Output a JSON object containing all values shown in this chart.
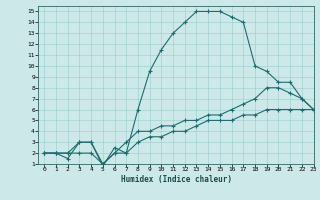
{
  "xlabel": "Humidex (Indice chaleur)",
  "ylabel": "",
  "background_color": "#cce8e8",
  "line_color": "#1a6e6e",
  "xlim": [
    -0.5,
    23
  ],
  "ylim": [
    1,
    15.5
  ],
  "xticks": [
    0,
    1,
    2,
    3,
    4,
    5,
    6,
    7,
    8,
    9,
    10,
    11,
    12,
    13,
    14,
    15,
    16,
    17,
    18,
    19,
    20,
    21,
    22,
    23
  ],
  "yticks": [
    1,
    2,
    3,
    4,
    5,
    6,
    7,
    8,
    9,
    10,
    11,
    12,
    13,
    14,
    15
  ],
  "line1_x": [
    0,
    1,
    2,
    3,
    4,
    5,
    6,
    7,
    8,
    9,
    10,
    11,
    12,
    13,
    14,
    15,
    16,
    17,
    18,
    19,
    20,
    21,
    22,
    23
  ],
  "line1_y": [
    2,
    2,
    1.5,
    3,
    3,
    0.8,
    2.5,
    2,
    6,
    9.5,
    11.5,
    13,
    14,
    15,
    15,
    15,
    14.5,
    14,
    10,
    9.5,
    8.5,
    8.5,
    7,
    6
  ],
  "line2_x": [
    0,
    1,
    2,
    3,
    4,
    5,
    6,
    7,
    8,
    9,
    10,
    11,
    12,
    13,
    14,
    15,
    16,
    17,
    18,
    19,
    20,
    21,
    22,
    23
  ],
  "line2_y": [
    2,
    2,
    2,
    3,
    3,
    1,
    2,
    3,
    4,
    4,
    4.5,
    4.5,
    5,
    5,
    5.5,
    5.5,
    6,
    6.5,
    7,
    8,
    8,
    7.5,
    7,
    6
  ],
  "line3_x": [
    0,
    1,
    2,
    3,
    4,
    5,
    6,
    7,
    8,
    9,
    10,
    11,
    12,
    13,
    14,
    15,
    16,
    17,
    18,
    19,
    20,
    21,
    22,
    23
  ],
  "line3_y": [
    2,
    2,
    2,
    2,
    2,
    1,
    2,
    2,
    3,
    3.5,
    3.5,
    4,
    4,
    4.5,
    5,
    5,
    5,
    5.5,
    5.5,
    6,
    6,
    6,
    6,
    6
  ]
}
